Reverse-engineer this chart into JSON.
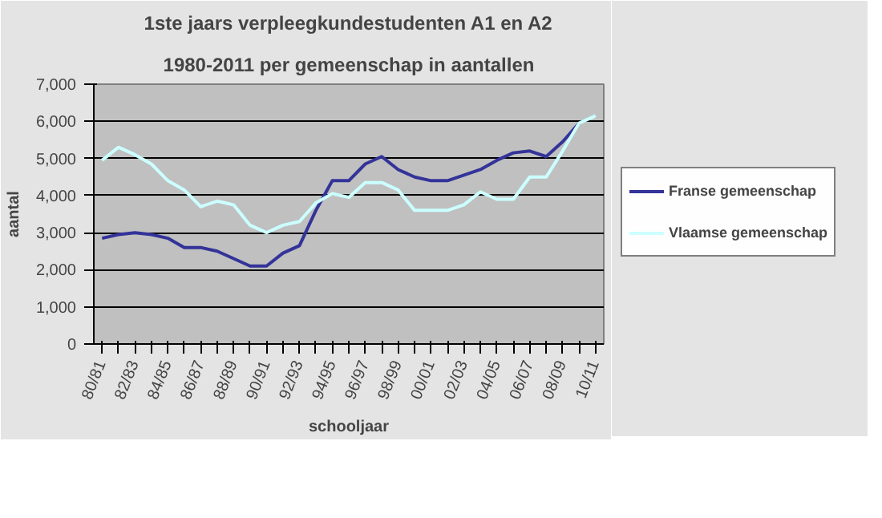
{
  "chart_data": {
    "type": "line",
    "title": "1ste jaars verpleegkundestudenten A1 en A2",
    "subtitle": "1980-2011 per gemeenschap in aantallen",
    "xlabel": "schooljaar",
    "ylabel": "aantal",
    "categories": [
      "80/81",
      null,
      "82/83",
      null,
      "84/85",
      null,
      "86/87",
      null,
      "88/89",
      null,
      "90/91",
      null,
      "92/93",
      null,
      "94/95",
      null,
      "96/97",
      null,
      "98/99",
      null,
      "00/01",
      null,
      "02/03",
      null,
      "04/05",
      null,
      "06/07",
      null,
      "08/09",
      null,
      "10/11"
    ],
    "series": [
      {
        "name": "Franse gemeenschap",
        "color": "#333399",
        "values": [
          2850,
          2950,
          3000,
          2950,
          2850,
          2600,
          2600,
          2500,
          2300,
          2100,
          2100,
          2450,
          2650,
          3600,
          4400,
          4400,
          4850,
          5050,
          4700,
          4500,
          4400,
          4400,
          4550,
          4700,
          4950,
          5150,
          5200,
          5050,
          5450,
          5950,
          null
        ]
      },
      {
        "name": "Vlaamse gemeenschap",
        "color": "#ccffff",
        "values": [
          4950,
          5300,
          5100,
          4850,
          4400,
          4150,
          3700,
          3850,
          3750,
          3200,
          3000,
          3200,
          3300,
          3800,
          4050,
          3950,
          4350,
          4350,
          4150,
          3600,
          3600,
          3600,
          3750,
          4100,
          3900,
          3900,
          4500,
          4500,
          5200,
          5950,
          6150
        ]
      }
    ],
    "ylim": [
      0,
      7000
    ],
    "yticks": [
      {
        "value": 0,
        "label": "0"
      },
      {
        "value": 1000,
        "label": "1,000"
      },
      {
        "value": 2000,
        "label": "2,000"
      },
      {
        "value": 3000,
        "label": "3,000"
      },
      {
        "value": 4000,
        "label": "4,000"
      },
      {
        "value": 5000,
        "label": "5,000"
      },
      {
        "value": 6000,
        "label": "6,000"
      },
      {
        "value": 7000,
        "label": "7,000"
      }
    ],
    "grid": "y",
    "legend": "right",
    "line_style": "solid"
  }
}
